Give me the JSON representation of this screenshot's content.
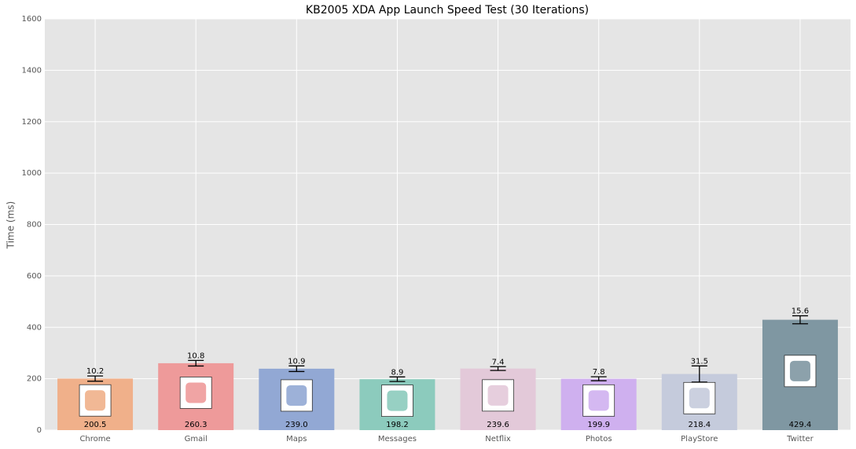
{
  "chart_data": {
    "type": "bar",
    "title": "KB2005 XDA App Launch Speed Test (30 Iterations)",
    "y_label": "Time (ms)",
    "categories": [
      "Chrome",
      "Gmail",
      "Maps",
      "Messages",
      "Netflix",
      "Photos",
      "PlayStore",
      "Twitter"
    ],
    "values": [
      200.5,
      260.3,
      239.0,
      198.2,
      239.6,
      199.9,
      218.4,
      429.4
    ],
    "value_labels": [
      "200.5",
      "260.3",
      "239.0",
      "198.2",
      "239.6",
      "199.9",
      "218.4",
      "429.4"
    ],
    "errors": [
      10.2,
      10.8,
      10.9,
      8.9,
      7.4,
      7.8,
      31.5,
      15.6
    ],
    "colors": [
      "#f0b08a",
      "#ee9a9a",
      "#92a8d4",
      "#8ccbbd",
      "#e3c9d9",
      "#cfb0ef",
      "#c5cbdc",
      "#7f97a2"
    ],
    "ylim": [
      0,
      1600
    ],
    "yticks": [
      0,
      200,
      400,
      600,
      800,
      1000,
      1200,
      1400,
      1600
    ],
    "grid": true
  }
}
